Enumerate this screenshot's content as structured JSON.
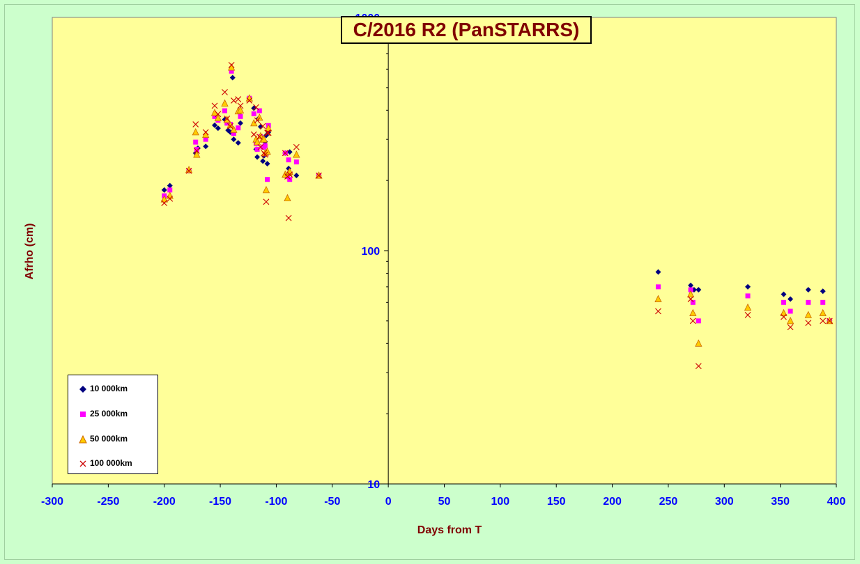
{
  "chart_data": {
    "type": "scatter",
    "title": "C/2016 R2 (PanSTARRS)",
    "xlabel": "Days from T",
    "ylabel": "Afrho (cm)",
    "xlim": [
      -300,
      400
    ],
    "ylim": [
      10,
      1000
    ],
    "y_scale": "log",
    "x_ticks": [
      "-300",
      "-250",
      "-200",
      "-150",
      "-100",
      "-50",
      "0",
      "50",
      "100",
      "150",
      "200",
      "250",
      "300",
      "350",
      "400"
    ],
    "y_ticks": [
      "10",
      "100",
      "1000"
    ],
    "grid": false,
    "legend_position": "bottom-left",
    "colors": {
      "plot_bg": "#ffff99",
      "outer_bg": "#ccffcc",
      "title": "#800000",
      "tick_labels": "#0000ff"
    },
    "series": [
      {
        "name": "10 000km",
        "marker": "diamond",
        "color": "#000080",
        "points": [
          [
            -200,
            182
          ],
          [
            -195,
            190
          ],
          [
            -178,
            220
          ],
          [
            -170,
            275
          ],
          [
            -172,
            262
          ],
          [
            -163,
            280
          ],
          [
            -155,
            345
          ],
          [
            -152,
            335
          ],
          [
            -146,
            365
          ],
          [
            -143,
            328
          ],
          [
            -141,
            322
          ],
          [
            -139,
            552
          ],
          [
            -138,
            300
          ],
          [
            -134,
            290
          ],
          [
            -132,
            352
          ],
          [
            -124,
            450
          ],
          [
            -120,
            408
          ],
          [
            -118,
            272
          ],
          [
            -117,
            252
          ],
          [
            -116,
            368
          ],
          [
            -114,
            340
          ],
          [
            -112,
            242
          ],
          [
            -111,
            255
          ],
          [
            -110,
            293
          ],
          [
            -109,
            312
          ],
          [
            -108,
            236
          ],
          [
            -107,
            322
          ],
          [
            -92,
            262
          ],
          [
            -90,
            210
          ],
          [
            -89,
            225
          ],
          [
            -88,
            265
          ],
          [
            -82,
            210
          ],
          [
            -62,
            210
          ],
          [
            241,
            81
          ],
          [
            270,
            71
          ],
          [
            273,
            68
          ],
          [
            277,
            68
          ],
          [
            321,
            70
          ],
          [
            353,
            65
          ],
          [
            359,
            62
          ],
          [
            375,
            68
          ],
          [
            388,
            67
          ],
          [
            394,
            50
          ]
        ]
      },
      {
        "name": "25 000km",
        "marker": "square",
        "color": "#ff00ff",
        "points": [
          [
            -200,
            172
          ],
          [
            -195,
            182
          ],
          [
            -178,
            220
          ],
          [
            -171,
            272
          ],
          [
            -172,
            292
          ],
          [
            -163,
            300
          ],
          [
            -155,
            376
          ],
          [
            -152,
            362
          ],
          [
            -146,
            398
          ],
          [
            -144,
            352
          ],
          [
            -141,
            348
          ],
          [
            -140,
            588
          ],
          [
            -138,
            318
          ],
          [
            -134,
            336
          ],
          [
            -132,
            376
          ],
          [
            -124,
            450
          ],
          [
            -120,
            386
          ],
          [
            -118,
            288
          ],
          [
            -117,
            272
          ],
          [
            -115,
            398
          ],
          [
            -114,
            308
          ],
          [
            -112,
            278
          ],
          [
            -111,
            278
          ],
          [
            -110,
            282
          ],
          [
            -109,
            260
          ],
          [
            -108,
            202
          ],
          [
            -107,
            344
          ],
          [
            -92,
            262
          ],
          [
            -90,
            208
          ],
          [
            -89,
            245
          ],
          [
            -88,
            202
          ],
          [
            -82,
            240
          ],
          [
            -62,
            210
          ],
          [
            241,
            70
          ],
          [
            270,
            68
          ],
          [
            272,
            60
          ],
          [
            277,
            50
          ],
          [
            321,
            64
          ],
          [
            353,
            60
          ],
          [
            359,
            55
          ],
          [
            375,
            60
          ],
          [
            388,
            60
          ],
          [
            394,
            50
          ]
        ]
      },
      {
        "name": "50 000km",
        "marker": "triangle",
        "color": "#ffa500",
        "points": [
          [
            -200,
            166
          ],
          [
            -195,
            172
          ],
          [
            -178,
            222
          ],
          [
            -171,
            258
          ],
          [
            -172,
            322
          ],
          [
            -163,
            314
          ],
          [
            -155,
            390
          ],
          [
            -152,
            370
          ],
          [
            -146,
            428
          ],
          [
            -144,
            364
          ],
          [
            -141,
            345
          ],
          [
            -140,
            610
          ],
          [
            -138,
            330
          ],
          [
            -134,
            396
          ],
          [
            -132,
            400
          ],
          [
            -124,
            450
          ],
          [
            -120,
            352
          ],
          [
            -118,
            300
          ],
          [
            -117,
            292
          ],
          [
            -115,
            372
          ],
          [
            -114,
            310
          ],
          [
            -112,
            300
          ],
          [
            -111,
            300
          ],
          [
            -110,
            262
          ],
          [
            -109,
            182
          ],
          [
            -108,
            266
          ],
          [
            -107,
            335
          ],
          [
            -92,
            212
          ],
          [
            -90,
            168
          ],
          [
            -89,
            215
          ],
          [
            -88,
            218
          ],
          [
            -82,
            258
          ],
          [
            -62,
            210
          ],
          [
            241,
            62
          ],
          [
            270,
            65
          ],
          [
            272,
            54
          ],
          [
            277,
            40
          ],
          [
            321,
            57
          ],
          [
            353,
            54
          ],
          [
            359,
            50
          ],
          [
            375,
            53
          ],
          [
            388,
            54
          ],
          [
            394,
            50
          ]
        ]
      },
      {
        "name": "100 000km",
        "marker": "x",
        "color": "#cc0000",
        "points": [
          [
            -200,
            160
          ],
          [
            -195,
            167
          ],
          [
            -178,
            220
          ],
          [
            -171,
            268
          ],
          [
            -172,
            348
          ],
          [
            -163,
            322
          ],
          [
            -155,
            418
          ],
          [
            -152,
            385
          ],
          [
            -146,
            478
          ],
          [
            -144,
            368
          ],
          [
            -141,
            342
          ],
          [
            -140,
            625
          ],
          [
            -138,
            440
          ],
          [
            -134,
            446
          ],
          [
            -132,
            418
          ],
          [
            -124,
            440
          ],
          [
            -120,
            315
          ],
          [
            -118,
            412
          ],
          [
            -117,
            362
          ],
          [
            -115,
            308
          ],
          [
            -114,
            278
          ],
          [
            -112,
            342
          ],
          [
            -111,
            262
          ],
          [
            -110,
            258
          ],
          [
            -109,
            162
          ],
          [
            -108,
            320
          ],
          [
            -107,
            320
          ],
          [
            -92,
            262
          ],
          [
            -90,
            208
          ],
          [
            -89,
            138
          ],
          [
            -88,
            212
          ],
          [
            -82,
            278
          ],
          [
            -62,
            210
          ],
          [
            241,
            55
          ],
          [
            270,
            62
          ],
          [
            272,
            50
          ],
          [
            277,
            32
          ],
          [
            321,
            53
          ],
          [
            353,
            52
          ],
          [
            359,
            47
          ],
          [
            375,
            49
          ],
          [
            388,
            50
          ],
          [
            394,
            50
          ]
        ]
      }
    ]
  }
}
